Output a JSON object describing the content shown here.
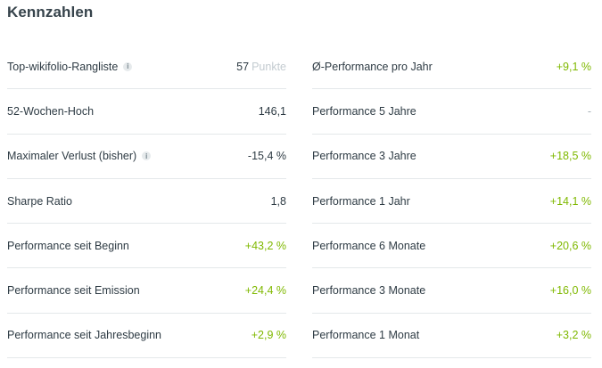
{
  "title": "Kennzahlen",
  "info_glyph": "i",
  "colors": {
    "positive": "#7fb800",
    "text": "#2e3b44",
    "divider": "#e4e8ea",
    "muted": "#c3cbd0"
  },
  "left": {
    "rank": {
      "label": "Top-wikifolio-Rangliste",
      "value": "57",
      "unit": "Punkte"
    },
    "high52": {
      "label": "52-Wochen-Hoch",
      "value": "146,1"
    },
    "maxloss": {
      "label": "Maximaler Verlust (bisher)",
      "value": "-15,4 %"
    },
    "sharpe": {
      "label": "Sharpe Ratio",
      "value": "1,8"
    },
    "since_start": {
      "label": "Performance seit Beginn",
      "value": "+43,2 %"
    },
    "since_emission": {
      "label": "Performance seit Emission",
      "value": "+24,4 %"
    },
    "ytd": {
      "label": "Performance seit Jahresbeginn",
      "value": "+2,9 %"
    }
  },
  "right": {
    "avg_year": {
      "label": "Ø-Performance pro Jahr",
      "value": "+9,1 %"
    },
    "y5": {
      "label": "Performance 5 Jahre",
      "value": "-"
    },
    "y3": {
      "label": "Performance 3 Jahre",
      "value": "+18,5 %"
    },
    "y1": {
      "label": "Performance 1 Jahr",
      "value": "+14,1 %"
    },
    "m6": {
      "label": "Performance 6 Monate",
      "value": "+20,6 %"
    },
    "m3": {
      "label": "Performance 3 Monate",
      "value": "+16,0 %"
    },
    "m1": {
      "label": "Performance 1 Monat",
      "value": "+3,2 %"
    }
  }
}
